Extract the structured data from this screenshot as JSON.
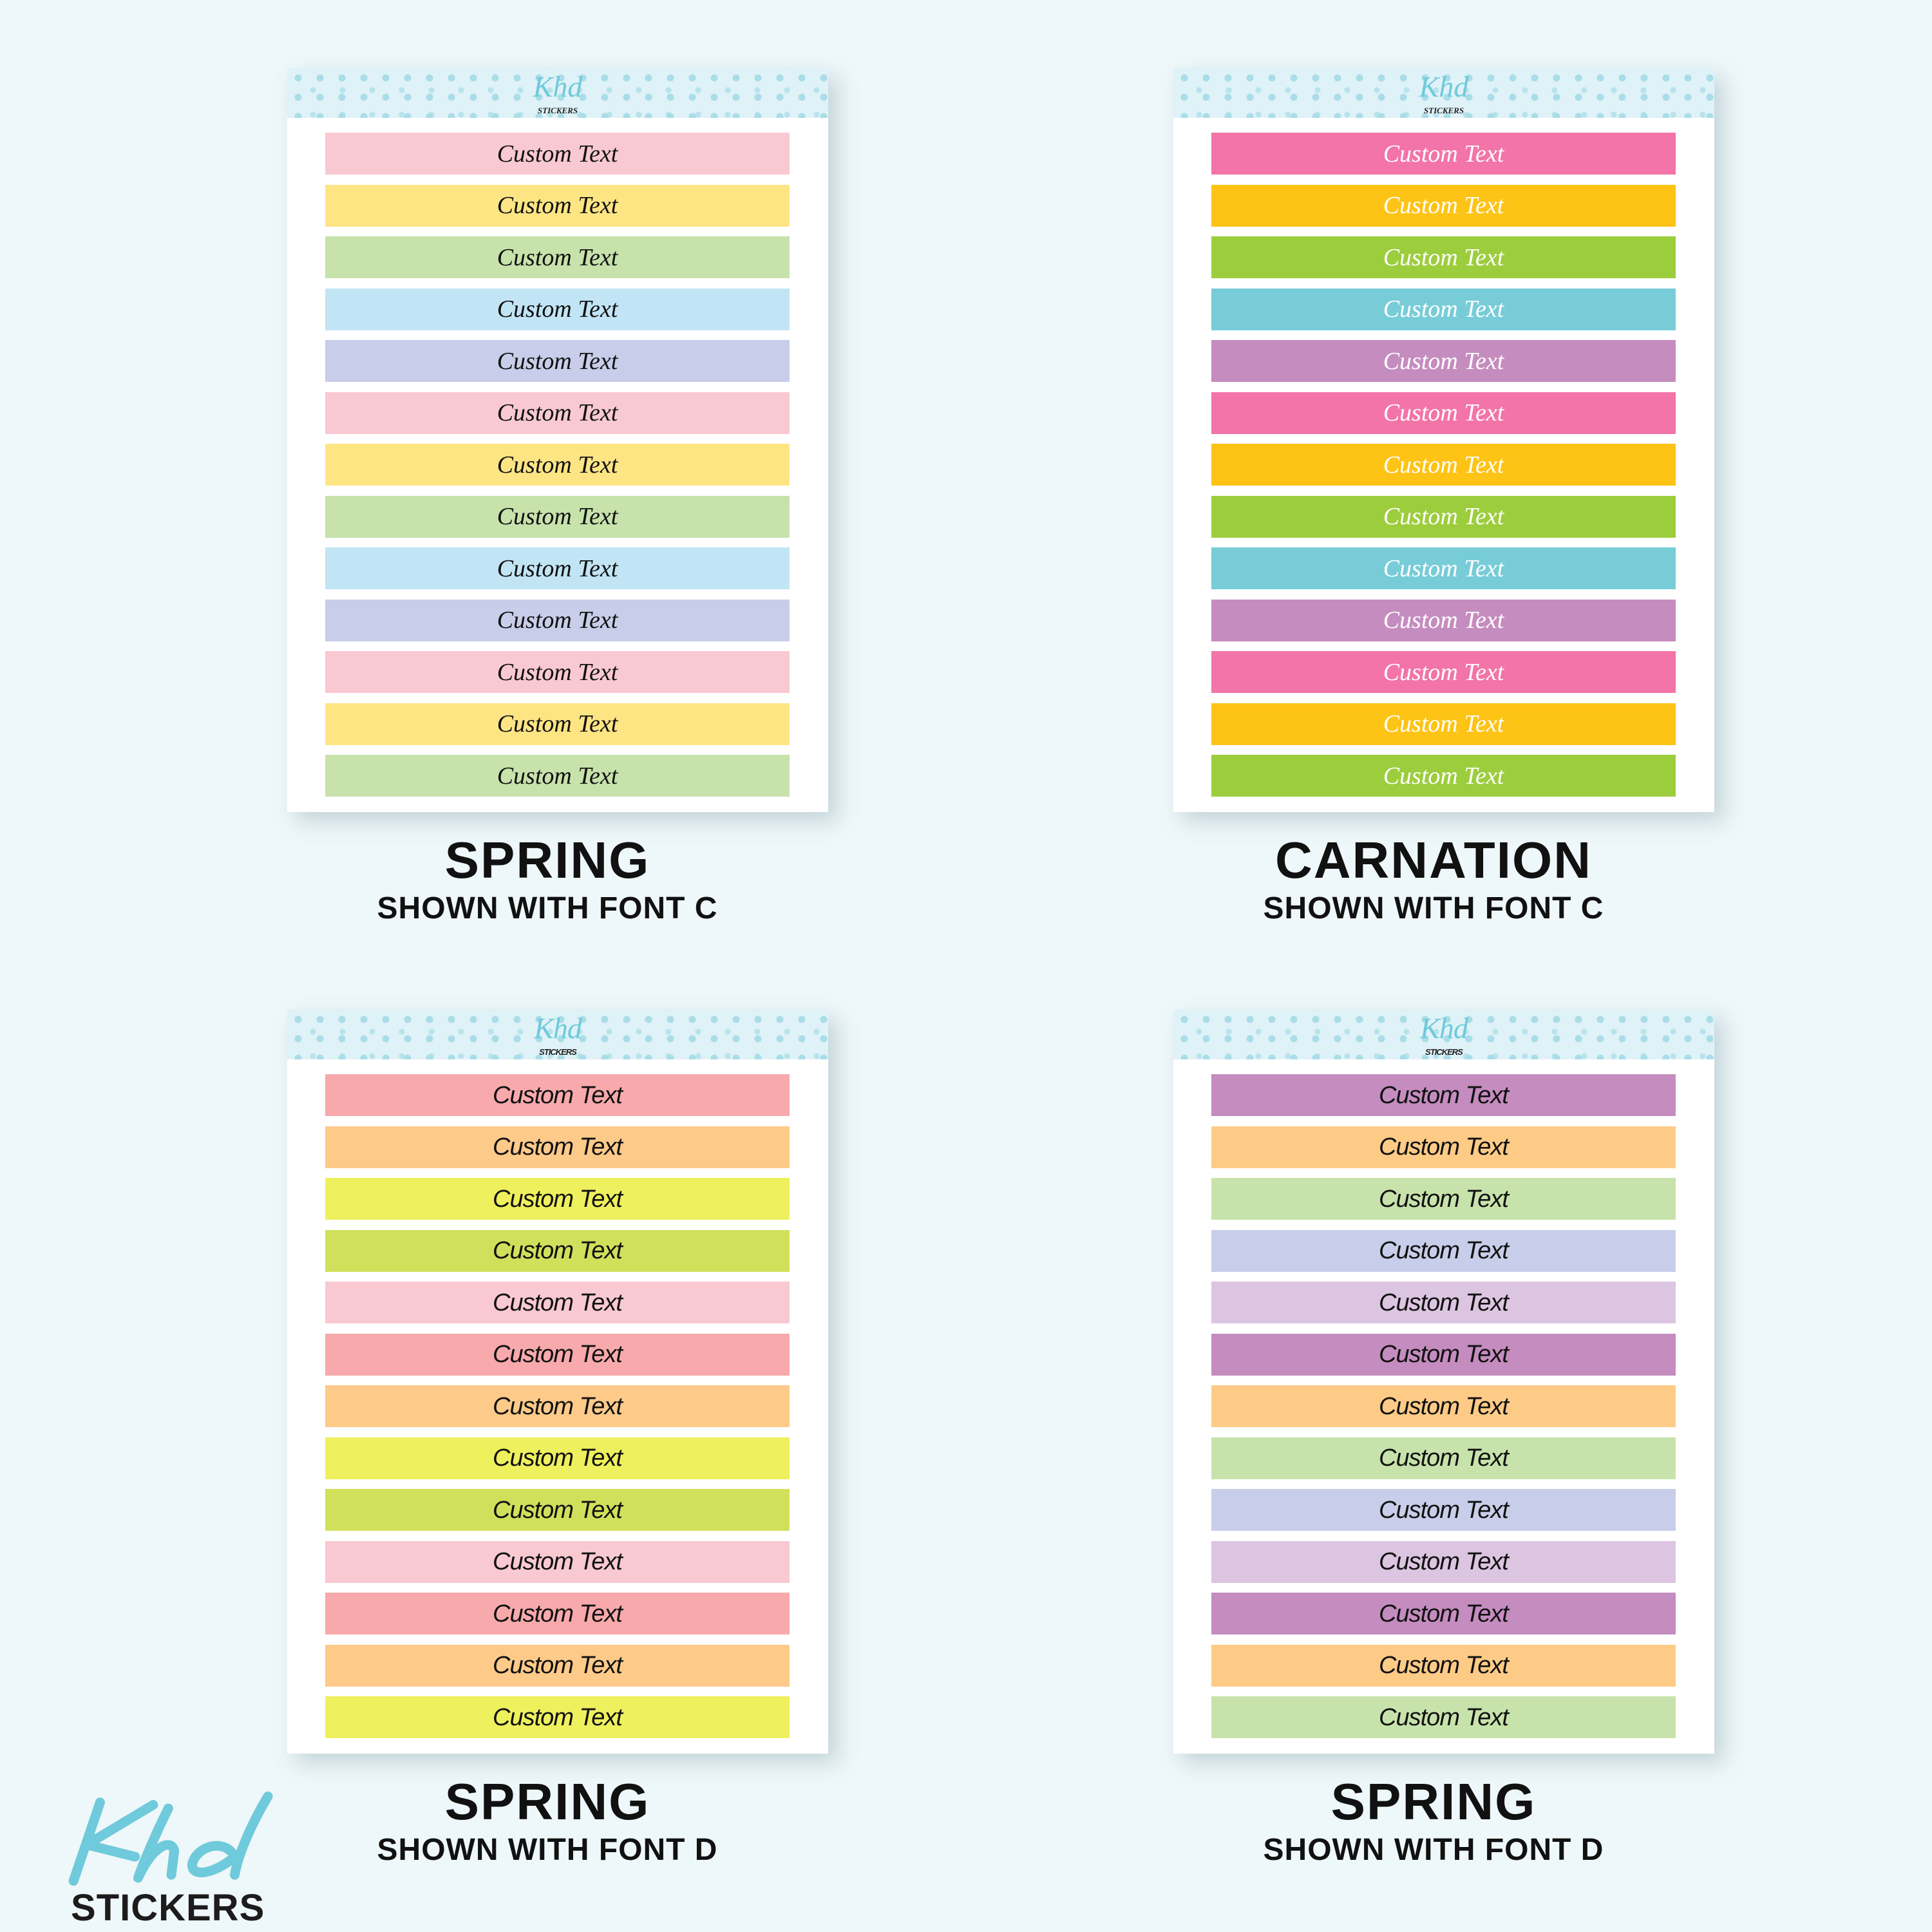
{
  "sheets": [
    {
      "title": "SPRING",
      "subtitle": "SHOWN WITH FONT C",
      "font": "C",
      "text_color": "#111111",
      "strip_text": "Custom Text",
      "colors": [
        "#f9c9d2",
        "#fee584",
        "#c7e2ab",
        "#c2e5f5",
        "#c8cee9",
        "#f9c9d2",
        "#fee584",
        "#c7e2ab",
        "#c2e5f5",
        "#c8cee9",
        "#f9c9d2",
        "#fee584",
        "#c7e2ab"
      ]
    },
    {
      "title": "CARNATION",
      "subtitle": "SHOWN WITH FONT C",
      "font": "C",
      "text_color": "#ffffff",
      "strip_text": "Custom Text",
      "colors": [
        "#f274a8",
        "#fdc315",
        "#9ccd3d",
        "#77ccd8",
        "#c58cbf",
        "#f274a8",
        "#fdc315",
        "#9ccd3d",
        "#77ccd8",
        "#c58cbf",
        "#f274a8",
        "#fdc315",
        "#9ccd3d"
      ]
    },
    {
      "title": "SPRING",
      "subtitle": "SHOWN WITH FONT D",
      "font": "D",
      "text_color": "#111111",
      "strip_text": "Custom Text",
      "colors": [
        "#f7a9ab",
        "#fdca89",
        "#eff05d",
        "#d1e05b",
        "#f9c9d2",
        "#f7a9ab",
        "#fdca89",
        "#eff05d",
        "#d1e05b",
        "#f9c9d2",
        "#f7a9ab",
        "#fdca89",
        "#eff05d"
      ]
    },
    {
      "title": "SPRING",
      "subtitle": "SHOWN WITH FONT D",
      "font": "D",
      "text_color": "#111111",
      "strip_text": "Custom Text",
      "colors": [
        "#c48cbf",
        "#fecb87",
        "#c7e3ab",
        "#c8cee9",
        "#dcc5e1",
        "#c48cbf",
        "#fecb87",
        "#c7e3ab",
        "#c8cee9",
        "#dcc5e1",
        "#c48cbf",
        "#fecb87",
        "#c7e3ab"
      ]
    }
  ],
  "sheet_logo": {
    "script": "Khd",
    "word": "STICKERS"
  },
  "brand_logo": {
    "script": "Khd",
    "word": "STICKERS",
    "color": "#6fcadb"
  }
}
